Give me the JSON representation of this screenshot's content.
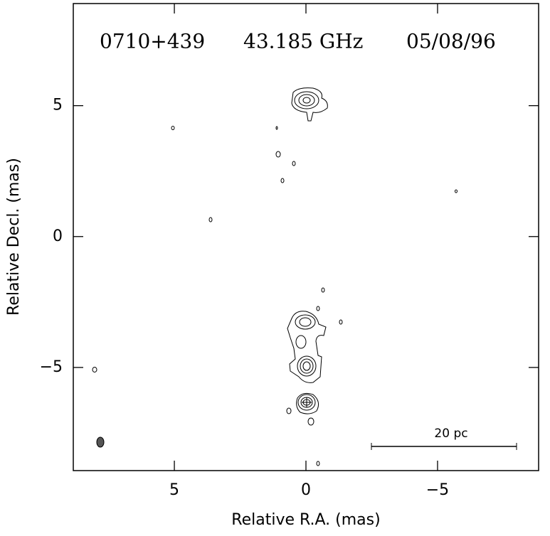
{
  "chart_data": {
    "type": "contour",
    "title_parts": [
      "0710+439",
      "43.185 GHz",
      "05/08/96"
    ],
    "x_label": "Relative R.A. (mas)",
    "y_label": "Relative Decl. (mas)",
    "scale_bar_label": "20 pc",
    "xlim": [
      8.84,
      -8.84
    ],
    "ylim": [
      -8.94,
      8.9
    ],
    "xticks": [
      5,
      0,
      {
        "value": -5,
        "label": "−5"
      }
    ],
    "yticks": [
      {
        "value": -5,
        "label": "−5"
      },
      0,
      5
    ]
  }
}
